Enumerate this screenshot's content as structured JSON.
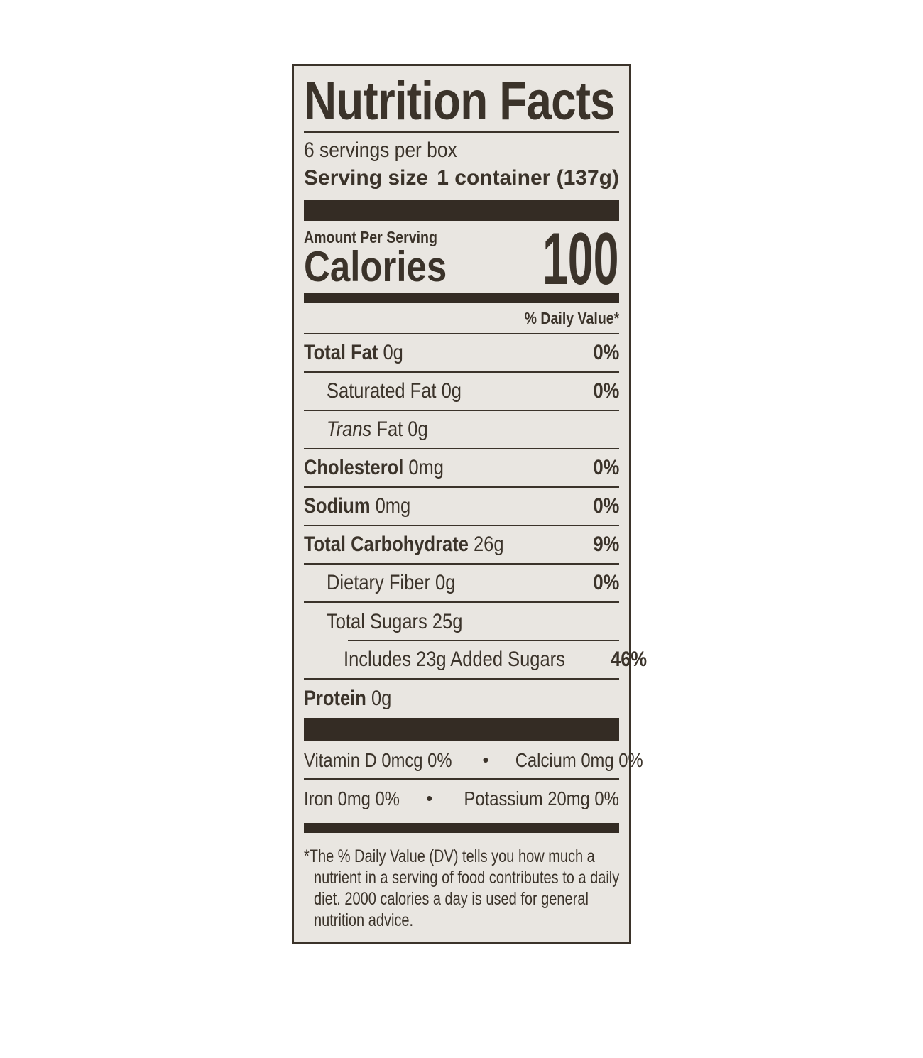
{
  "label": {
    "colors": {
      "ink": "#3b332a",
      "bar": "#342c24",
      "background": "#e9e6e1",
      "page_background": "#ffffff"
    },
    "title": "Nutrition Facts",
    "servings_per": "6 servings per box",
    "serving_size_label": "Serving size",
    "serving_size_value": "1 container (137g)",
    "amount_per_serving": "Amount Per Serving",
    "calories_label": "Calories",
    "calories_value": "100",
    "daily_value_header": "% Daily Value*",
    "rows": [
      {
        "name": "Total Fat",
        "amount": "0g",
        "dv": "0%",
        "bold": true,
        "indent": 0
      },
      {
        "name": "Saturated Fat",
        "amount": "0g",
        "dv": "0%",
        "bold": false,
        "indent": 1
      },
      {
        "name": "Trans Fat",
        "amount": "0g",
        "dv": "",
        "bold": false,
        "indent": 1,
        "italic_prefix": "Trans",
        "rest": " Fat 0g"
      },
      {
        "name": "Cholesterol",
        "amount": "0mg",
        "dv": "0%",
        "bold": true,
        "indent": 0
      },
      {
        "name": "Sodium",
        "amount": "0mg",
        "dv": "0%",
        "bold": true,
        "indent": 0
      },
      {
        "name": "Total Carbohydrate",
        "amount": "26g",
        "dv": "9%",
        "bold": true,
        "indent": 0
      },
      {
        "name": "Dietary Fiber",
        "amount": "0g",
        "dv": "0%",
        "bold": false,
        "indent": 1
      },
      {
        "name": "Total Sugars",
        "amount": "25g",
        "dv": "",
        "bold": false,
        "indent": 1,
        "inset_line_below": true
      },
      {
        "name": "Includes 23g Added Sugars",
        "amount": "",
        "dv": "46%",
        "bold": false,
        "indent": 2
      },
      {
        "name": "Protein",
        "amount": "0g",
        "dv": "",
        "bold": true,
        "indent": 0,
        "no_line": true
      }
    ],
    "micronutrients": [
      {
        "left": "Vitamin D 0mcg 0%",
        "bullet": "•",
        "right": "Calcium  0mg 0%"
      },
      {
        "left": "Iron  0mg 0%",
        "bullet": "•",
        "right": "Potassium 20mg 0%"
      }
    ],
    "footnote_lines": [
      "*The % Daily Value (DV) tells you how much a",
      "nutrient in a serving of food contributes to a daily",
      "diet. 2000 calories a day is used for general",
      "nutrition advice."
    ]
  }
}
